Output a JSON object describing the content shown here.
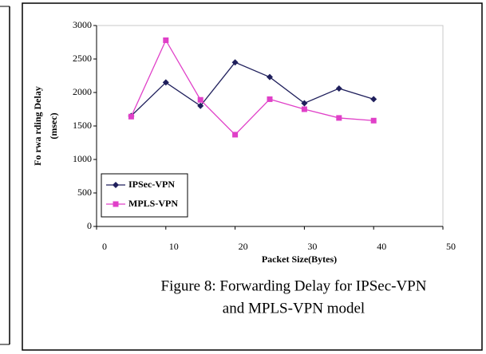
{
  "chart_data": {
    "type": "line",
    "x": [
      5,
      10,
      15,
      20,
      25,
      30,
      35,
      40
    ],
    "series": [
      {
        "name": "IPSec-VPN",
        "color": "#1f1f5c",
        "marker": "diamond",
        "values": [
          1650,
          2150,
          1800,
          2450,
          2230,
          1840,
          2060,
          1900
        ]
      },
      {
        "name": "MPLS-VPN",
        "color": "#e040c8",
        "marker": "square",
        "values": [
          1640,
          2780,
          1890,
          1370,
          1900,
          1750,
          1620,
          1580
        ]
      }
    ],
    "xlim": [
      0,
      50
    ],
    "xticks": [
      0,
      10,
      20,
      30,
      40,
      50
    ],
    "ylim": [
      0,
      3000
    ],
    "yticks": [
      0,
      500,
      1000,
      1500,
      2000,
      2500,
      3000
    ],
    "xlabel": "Packet Size(Bytes)",
    "ylabel": [
      "Fo rwa rding Delay",
      "(msec)"
    ],
    "legend": "lower left",
    "grid": false
  },
  "caption": [
    "Figure 8: Forwarding Delay for IPSec-VPN",
    "and MPLS-VPN model"
  ]
}
